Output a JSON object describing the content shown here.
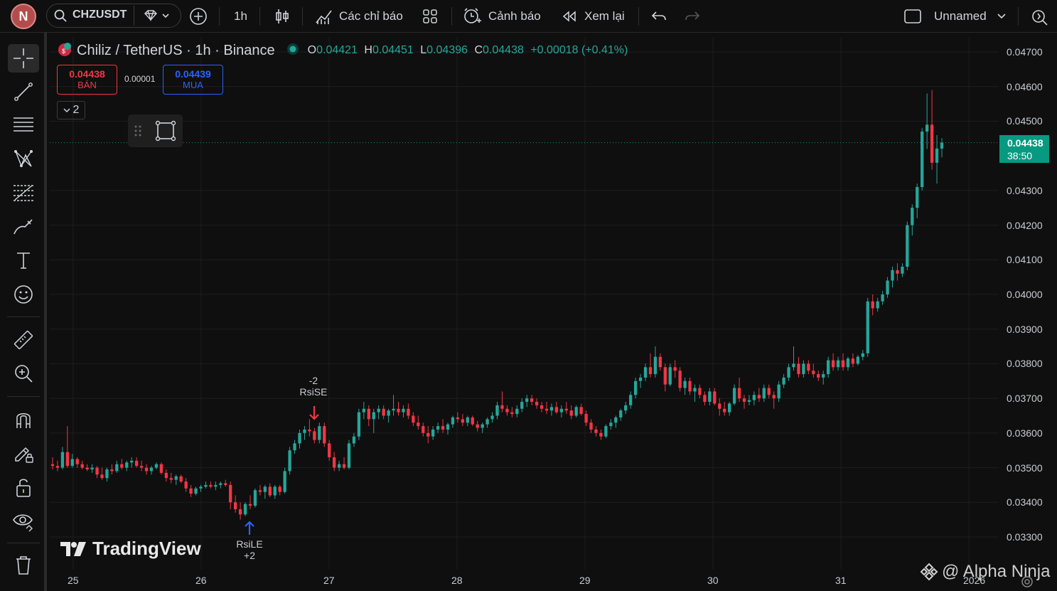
{
  "topbar": {
    "avatar_letter": "N",
    "symbol": "CHZUSDT",
    "interval": "1h",
    "indicators_label": "Các chỉ báo",
    "alert_label": "Cảnh báo",
    "replay_label": "Xem lại",
    "layout_name": "Unnamed"
  },
  "legend": {
    "title": "Chiliz / TetherUS · 1h · Binance",
    "o_key": "O",
    "o_val": "0.04421",
    "h_key": "H",
    "h_val": "0.04451",
    "l_key": "L",
    "l_val": "0.04396",
    "c_key": "C",
    "c_val": "0.04438",
    "change": "+0.00018 (+0.41%)"
  },
  "trade": {
    "sell_price": "0.04438",
    "sell_label": "BÁN",
    "spread": "0.00001",
    "buy_price": "0.04439",
    "buy_label": "MUA"
  },
  "collapse_count": "2",
  "yaxis": [
    "0.04700",
    "0.04600",
    "0.04500",
    "0.04300",
    "0.04200",
    "0.04100",
    "0.04000",
    "0.03900",
    "0.03800",
    "0.03700",
    "0.03600",
    "0.03500",
    "0.03400",
    "0.03300"
  ],
  "xaxis": [
    "25",
    "26",
    "27",
    "28",
    "29",
    "30",
    "31",
    "2026"
  ],
  "current_price": {
    "price": "0.04438",
    "countdown": "38:50"
  },
  "signals": {
    "short_top": "-2",
    "short_name": "RsiSE",
    "long_name": "RsiLE",
    "long_bottom": "+2"
  },
  "branding": {
    "tv": "TradingView",
    "watermark": "@ Alpha Ninja"
  },
  "colors": {
    "up": "#26a69a",
    "down": "#f23645",
    "accent": "#089981",
    "buy": "#2962ff"
  },
  "chart_data": {
    "type": "candlestick",
    "ylim": [
      0.0322,
      0.0475
    ],
    "candles": [
      [
        0.0351,
        0.0353,
        0.03495,
        0.03505
      ],
      [
        0.03505,
        0.0352,
        0.0349,
        0.035
      ],
      [
        0.035,
        0.0356,
        0.03495,
        0.03545
      ],
      [
        0.03545,
        0.0362,
        0.035,
        0.03505
      ],
      [
        0.03505,
        0.0354,
        0.035,
        0.03525
      ],
      [
        0.03525,
        0.0353,
        0.035,
        0.0351
      ],
      [
        0.0351,
        0.0352,
        0.03495,
        0.035
      ],
      [
        0.035,
        0.0351,
        0.0349,
        0.03495
      ],
      [
        0.03495,
        0.0351,
        0.03485,
        0.035
      ],
      [
        0.035,
        0.03505,
        0.0347,
        0.0348
      ],
      [
        0.0348,
        0.035,
        0.03465,
        0.0347
      ],
      [
        0.0347,
        0.035,
        0.0346,
        0.03495
      ],
      [
        0.03495,
        0.0351,
        0.0348,
        0.0349
      ],
      [
        0.0349,
        0.0352,
        0.03485,
        0.0351
      ],
      [
        0.0351,
        0.03525,
        0.03495,
        0.035
      ],
      [
        0.035,
        0.0352,
        0.0349,
        0.03515
      ],
      [
        0.03515,
        0.0353,
        0.035,
        0.0352
      ],
      [
        0.0352,
        0.0353,
        0.035,
        0.03505
      ],
      [
        0.03505,
        0.0352,
        0.0349,
        0.035
      ],
      [
        0.035,
        0.0351,
        0.0348,
        0.0349
      ],
      [
        0.0349,
        0.03505,
        0.0348,
        0.035
      ],
      [
        0.035,
        0.03515,
        0.03495,
        0.0351
      ],
      [
        0.0351,
        0.03515,
        0.0348,
        0.03485
      ],
      [
        0.03485,
        0.03495,
        0.0346,
        0.0347
      ],
      [
        0.0347,
        0.03485,
        0.03455,
        0.03465
      ],
      [
        0.03465,
        0.0348,
        0.0345,
        0.03475
      ],
      [
        0.03475,
        0.0348,
        0.03455,
        0.0346
      ],
      [
        0.0346,
        0.0347,
        0.0343,
        0.0344
      ],
      [
        0.0344,
        0.0345,
        0.03415,
        0.03425
      ],
      [
        0.03425,
        0.03445,
        0.0342,
        0.0344
      ],
      [
        0.0344,
        0.0345,
        0.0343,
        0.03445
      ],
      [
        0.03445,
        0.0346,
        0.0344,
        0.0345
      ],
      [
        0.0345,
        0.0346,
        0.0344,
        0.03445
      ],
      [
        0.03445,
        0.0346,
        0.03435,
        0.0345
      ],
      [
        0.0345,
        0.0346,
        0.0344,
        0.03455
      ],
      [
        0.03455,
        0.03465,
        0.03445,
        0.0345
      ],
      [
        0.0345,
        0.0346,
        0.0338,
        0.034
      ],
      [
        0.034,
        0.0342,
        0.0337,
        0.0338
      ],
      [
        0.0338,
        0.034,
        0.0335,
        0.03365
      ],
      [
        0.03365,
        0.034,
        0.0336,
        0.03395
      ],
      [
        0.03395,
        0.0342,
        0.0338,
        0.0339
      ],
      [
        0.0339,
        0.0344,
        0.03385,
        0.03435
      ],
      [
        0.03435,
        0.0345,
        0.0342,
        0.0343
      ],
      [
        0.0343,
        0.0345,
        0.0341,
        0.03445
      ],
      [
        0.03445,
        0.03455,
        0.03415,
        0.0342
      ],
      [
        0.0342,
        0.0345,
        0.0341,
        0.03445
      ],
      [
        0.03445,
        0.0345,
        0.0342,
        0.0343
      ],
      [
        0.0343,
        0.035,
        0.03425,
        0.0349
      ],
      [
        0.0349,
        0.0356,
        0.0348,
        0.0355
      ],
      [
        0.0355,
        0.0358,
        0.0354,
        0.0357
      ],
      [
        0.0357,
        0.0361,
        0.03555,
        0.036
      ],
      [
        0.036,
        0.0362,
        0.0358,
        0.0361
      ],
      [
        0.0361,
        0.0364,
        0.0359,
        0.03605
      ],
      [
        0.03605,
        0.03615,
        0.0357,
        0.0358
      ],
      [
        0.0358,
        0.0363,
        0.0357,
        0.0362
      ],
      [
        0.0362,
        0.0363,
        0.0356,
        0.0357
      ],
      [
        0.0357,
        0.0358,
        0.0352,
        0.0353
      ],
      [
        0.0353,
        0.03545,
        0.0349,
        0.035
      ],
      [
        0.035,
        0.0352,
        0.0349,
        0.0351
      ],
      [
        0.0351,
        0.0353,
        0.03495,
        0.035
      ],
      [
        0.035,
        0.0358,
        0.03495,
        0.0357
      ],
      [
        0.0357,
        0.036,
        0.0356,
        0.0359
      ],
      [
        0.0359,
        0.0367,
        0.0358,
        0.0366
      ],
      [
        0.0366,
        0.0369,
        0.0364,
        0.0367
      ],
      [
        0.0367,
        0.0368,
        0.0362,
        0.0364
      ],
      [
        0.0364,
        0.0367,
        0.036,
        0.0366
      ],
      [
        0.0366,
        0.0368,
        0.0364,
        0.0367
      ],
      [
        0.0367,
        0.0368,
        0.0364,
        0.0365
      ],
      [
        0.0365,
        0.0367,
        0.0363,
        0.03665
      ],
      [
        0.03665,
        0.0371,
        0.0365,
        0.0367
      ],
      [
        0.0367,
        0.0369,
        0.0365,
        0.0366
      ],
      [
        0.0366,
        0.0368,
        0.03645,
        0.0367
      ],
      [
        0.0367,
        0.03685,
        0.0364,
        0.0365
      ],
      [
        0.0365,
        0.0366,
        0.0362,
        0.0363
      ],
      [
        0.0363,
        0.0365,
        0.0361,
        0.0362
      ],
      [
        0.0362,
        0.0363,
        0.0359,
        0.036
      ],
      [
        0.036,
        0.0362,
        0.0357,
        0.0359
      ],
      [
        0.0359,
        0.0362,
        0.0358,
        0.0361
      ],
      [
        0.0361,
        0.0363,
        0.036,
        0.0362
      ],
      [
        0.0362,
        0.0364,
        0.036,
        0.0361
      ],
      [
        0.0361,
        0.0363,
        0.03595,
        0.03625
      ],
      [
        0.03625,
        0.0365,
        0.03615,
        0.03645
      ],
      [
        0.03645,
        0.0366,
        0.0363,
        0.0364
      ],
      [
        0.0364,
        0.03655,
        0.0362,
        0.0363
      ],
      [
        0.0363,
        0.0365,
        0.0362,
        0.03645
      ],
      [
        0.03645,
        0.0365,
        0.0362,
        0.03625
      ],
      [
        0.03625,
        0.03635,
        0.03605,
        0.03615
      ],
      [
        0.03615,
        0.0363,
        0.036,
        0.03625
      ],
      [
        0.03625,
        0.03645,
        0.03615,
        0.0364
      ],
      [
        0.0364,
        0.0366,
        0.0363,
        0.0365
      ],
      [
        0.0365,
        0.0369,
        0.0364,
        0.0368
      ],
      [
        0.0368,
        0.0372,
        0.0366,
        0.0367
      ],
      [
        0.0367,
        0.0368,
        0.0365,
        0.0366
      ],
      [
        0.0366,
        0.03675,
        0.03645,
        0.03655
      ],
      [
        0.03655,
        0.0368,
        0.03645,
        0.0367
      ],
      [
        0.0367,
        0.037,
        0.0366,
        0.0369
      ],
      [
        0.0369,
        0.0371,
        0.03675,
        0.037
      ],
      [
        0.037,
        0.0371,
        0.0368,
        0.0369
      ],
      [
        0.0369,
        0.037,
        0.0367,
        0.0368
      ],
      [
        0.0368,
        0.0369,
        0.0366,
        0.0367
      ],
      [
        0.0367,
        0.0369,
        0.03655,
        0.03665
      ],
      [
        0.03665,
        0.03685,
        0.0365,
        0.03675
      ],
      [
        0.03675,
        0.0369,
        0.03655,
        0.0366
      ],
      [
        0.0366,
        0.0368,
        0.03645,
        0.0367
      ],
      [
        0.0367,
        0.0369,
        0.03655,
        0.03665
      ],
      [
        0.03665,
        0.0368,
        0.0364,
        0.0365
      ],
      [
        0.0365,
        0.0368,
        0.03645,
        0.03675
      ],
      [
        0.03675,
        0.03685,
        0.0365,
        0.03655
      ],
      [
        0.03655,
        0.03665,
        0.0362,
        0.0363
      ],
      [
        0.0363,
        0.0364,
        0.036,
        0.0361
      ],
      [
        0.0361,
        0.0362,
        0.0359,
        0.036
      ],
      [
        0.036,
        0.0361,
        0.0358,
        0.0359
      ],
      [
        0.0359,
        0.03625,
        0.03585,
        0.0362
      ],
      [
        0.0362,
        0.0364,
        0.0361,
        0.0363
      ],
      [
        0.0363,
        0.0365,
        0.03615,
        0.03645
      ],
      [
        0.03645,
        0.0367,
        0.03635,
        0.03665
      ],
      [
        0.03665,
        0.0369,
        0.03655,
        0.0368
      ],
      [
        0.0368,
        0.0372,
        0.0367,
        0.0371
      ],
      [
        0.0371,
        0.0376,
        0.037,
        0.0375
      ],
      [
        0.0375,
        0.0377,
        0.0373,
        0.0376
      ],
      [
        0.0376,
        0.038,
        0.0375,
        0.0379
      ],
      [
        0.0379,
        0.0383,
        0.0376,
        0.0377
      ],
      [
        0.0377,
        0.0385,
        0.0376,
        0.0382
      ],
      [
        0.0382,
        0.0383,
        0.0378,
        0.0379
      ],
      [
        0.0379,
        0.038,
        0.0372,
        0.0374
      ],
      [
        0.0374,
        0.038,
        0.03735,
        0.0379
      ],
      [
        0.0379,
        0.0381,
        0.0376,
        0.0378
      ],
      [
        0.0378,
        0.0379,
        0.0372,
        0.0373
      ],
      [
        0.0373,
        0.0376,
        0.0371,
        0.0375
      ],
      [
        0.0375,
        0.0376,
        0.0371,
        0.0372
      ],
      [
        0.0372,
        0.0374,
        0.0369,
        0.0373
      ],
      [
        0.0373,
        0.0374,
        0.037,
        0.0371
      ],
      [
        0.0371,
        0.0372,
        0.0368,
        0.0369
      ],
      [
        0.0369,
        0.0373,
        0.0368,
        0.0372
      ],
      [
        0.0372,
        0.0373,
        0.0368,
        0.03685
      ],
      [
        0.03685,
        0.037,
        0.0365,
        0.0367
      ],
      [
        0.0367,
        0.0369,
        0.0365,
        0.0366
      ],
      [
        0.0366,
        0.0369,
        0.0365,
        0.03685
      ],
      [
        0.03685,
        0.0374,
        0.0368,
        0.0373
      ],
      [
        0.0373,
        0.0376,
        0.0369,
        0.037
      ],
      [
        0.037,
        0.0371,
        0.0367,
        0.0369
      ],
      [
        0.0369,
        0.0371,
        0.0368,
        0.03695
      ],
      [
        0.03695,
        0.0372,
        0.0368,
        0.0371
      ],
      [
        0.0371,
        0.0373,
        0.0369,
        0.037
      ],
      [
        0.037,
        0.0374,
        0.0369,
        0.0373
      ],
      [
        0.0373,
        0.0374,
        0.037,
        0.0371
      ],
      [
        0.0371,
        0.0372,
        0.0367,
        0.037
      ],
      [
        0.037,
        0.0375,
        0.0369,
        0.0374
      ],
      [
        0.0374,
        0.0377,
        0.0373,
        0.0376
      ],
      [
        0.0376,
        0.038,
        0.0375,
        0.0379
      ],
      [
        0.0379,
        0.0385,
        0.0378,
        0.038
      ],
      [
        0.038,
        0.0382,
        0.0376,
        0.0377
      ],
      [
        0.0377,
        0.0381,
        0.0376,
        0.038
      ],
      [
        0.038,
        0.0381,
        0.0377,
        0.0378
      ],
      [
        0.0378,
        0.038,
        0.0376,
        0.0377
      ],
      [
        0.0377,
        0.0378,
        0.0375,
        0.0376
      ],
      [
        0.0376,
        0.0378,
        0.0374,
        0.0377
      ],
      [
        0.0377,
        0.0382,
        0.0376,
        0.0381
      ],
      [
        0.0381,
        0.0383,
        0.0378,
        0.0379
      ],
      [
        0.0379,
        0.0382,
        0.0378,
        0.0381
      ],
      [
        0.0381,
        0.0383,
        0.0378,
        0.0379
      ],
      [
        0.0379,
        0.0382,
        0.0378,
        0.03815
      ],
      [
        0.03815,
        0.0383,
        0.0379,
        0.038
      ],
      [
        0.038,
        0.03825,
        0.03795,
        0.0382
      ],
      [
        0.0382,
        0.0384,
        0.0381,
        0.0383
      ],
      [
        0.0383,
        0.0399,
        0.0382,
        0.0398
      ],
      [
        0.0398,
        0.04,
        0.0394,
        0.0396
      ],
      [
        0.0396,
        0.0399,
        0.0395,
        0.0398
      ],
      [
        0.0398,
        0.0401,
        0.0397,
        0.04
      ],
      [
        0.04,
        0.0405,
        0.0399,
        0.0404
      ],
      [
        0.0404,
        0.0408,
        0.0402,
        0.0407
      ],
      [
        0.0407,
        0.0409,
        0.0404,
        0.0406
      ],
      [
        0.0406,
        0.0409,
        0.0405,
        0.0408
      ],
      [
        0.0408,
        0.0421,
        0.0407,
        0.042
      ],
      [
        0.042,
        0.0426,
        0.0417,
        0.0425
      ],
      [
        0.0425,
        0.0432,
        0.0422,
        0.0431
      ],
      [
        0.0431,
        0.0448,
        0.043,
        0.0447
      ],
      [
        0.0447,
        0.0458,
        0.0442,
        0.0449
      ],
      [
        0.0449,
        0.0459,
        0.0436,
        0.0438
      ],
      [
        0.0438,
        0.0446,
        0.0432,
        0.04421
      ],
      [
        0.04421,
        0.04451,
        0.04396,
        0.04438
      ]
    ]
  }
}
